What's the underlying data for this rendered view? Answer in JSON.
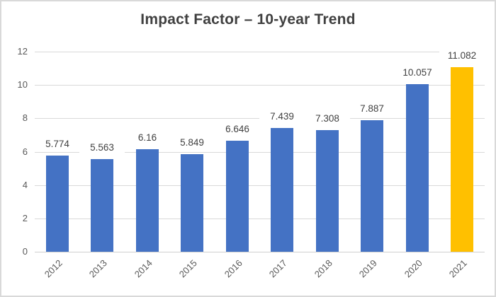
{
  "window": {
    "background": "#ffffff",
    "border_color": "#d9d9d9"
  },
  "chart_data": {
    "type": "bar",
    "title": "Impact Factor – 10-year Trend",
    "xlabel": "",
    "ylabel": "",
    "categories": [
      "2012",
      "2013",
      "2014",
      "2015",
      "2016",
      "2017",
      "2018",
      "2019",
      "2020",
      "2021"
    ],
    "series": [
      {
        "name": "Impact Factor",
        "values": [
          5.774,
          5.563,
          6.16,
          5.849,
          6.646,
          7.439,
          7.308,
          7.887,
          10.057,
          11.082
        ]
      }
    ],
    "data_labels": [
      "5.774",
      "5.563",
      "6.16",
      "5.849",
      "6.646",
      "7.439",
      "7.308",
      "7.887",
      "10.057",
      "11.082"
    ],
    "bar_colors": [
      "#4472C4",
      "#4472C4",
      "#4472C4",
      "#4472C4",
      "#4472C4",
      "#4472C4",
      "#4472C4",
      "#4472C4",
      "#4472C4",
      "#FFC000"
    ],
    "ylim": [
      0,
      12
    ],
    "yticks": [
      0,
      2,
      4,
      6,
      8,
      10,
      12
    ],
    "grid": true,
    "legend": "none",
    "x_label_rotation_deg": 45,
    "colors": {
      "bar_default": "#4472C4",
      "bar_highlight": "#FFC000",
      "title_text": "#404040",
      "axis_text": "#595959",
      "data_label_text": "#404040",
      "gridline": "#d9d9d9"
    }
  }
}
